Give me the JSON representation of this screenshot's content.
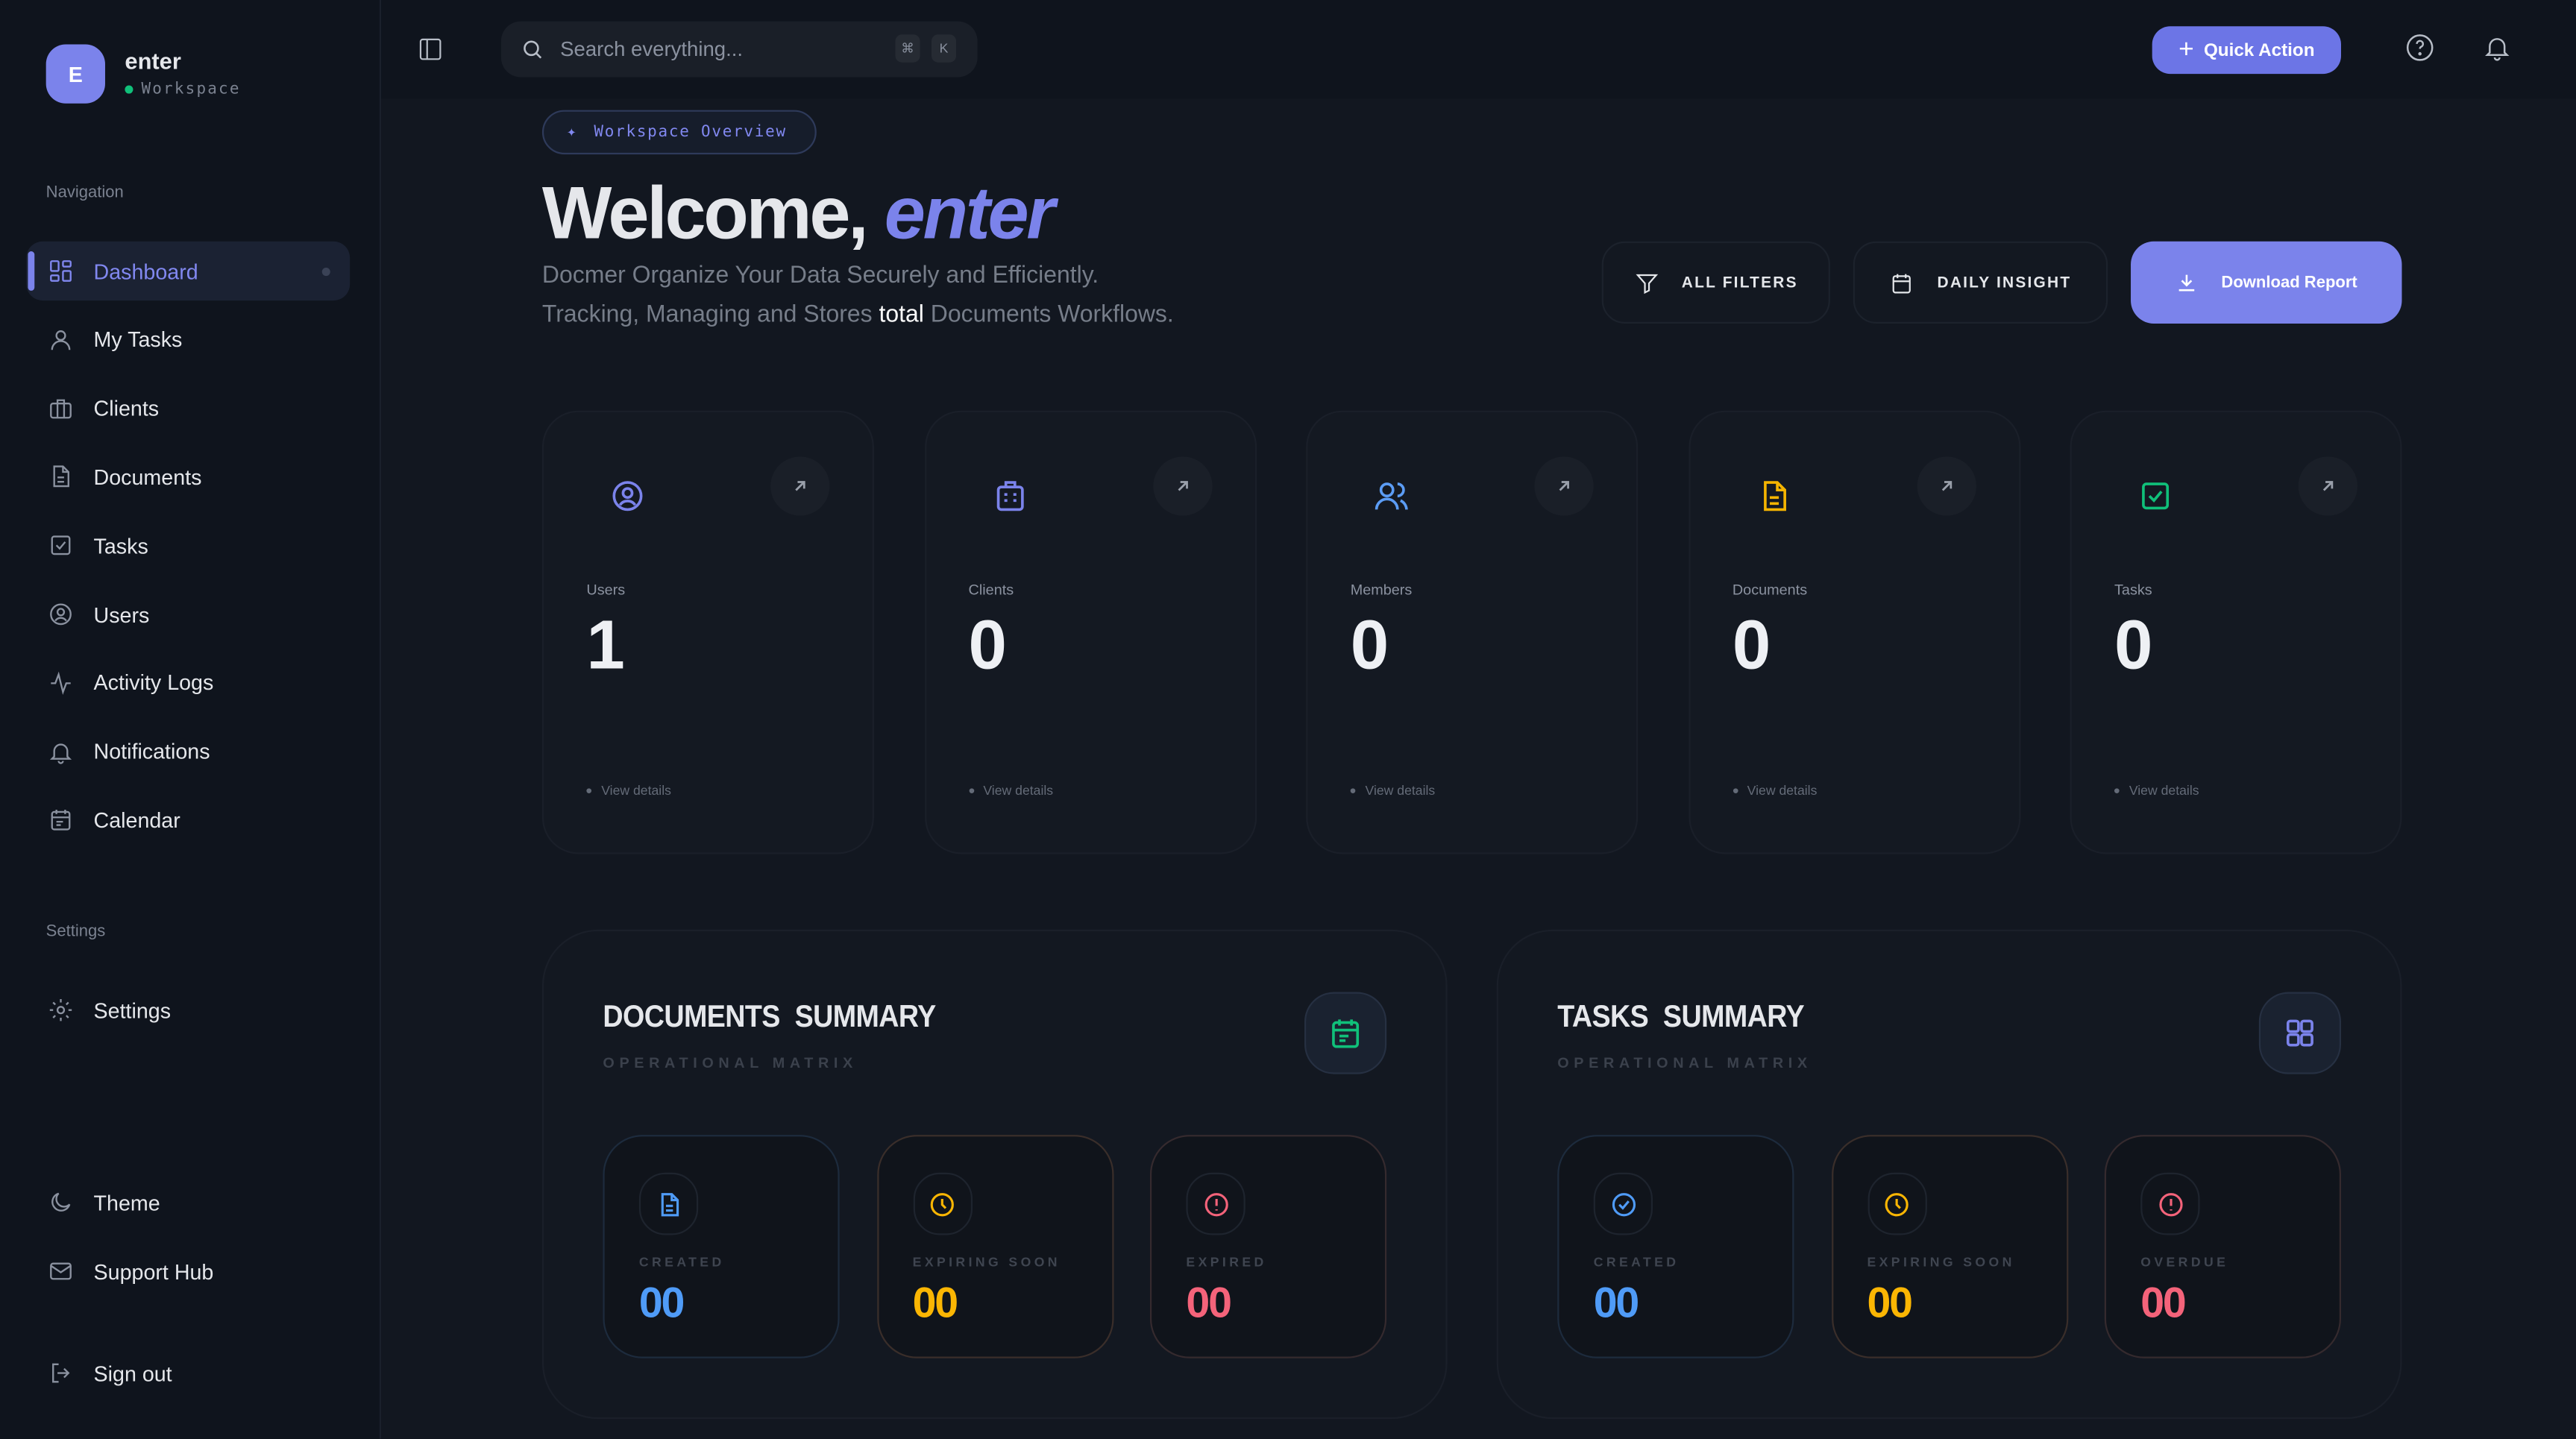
{
  "user": {
    "initial": "E",
    "name": "enter",
    "workspace": "Workspace"
  },
  "sidebar": {
    "nav_title": "Navigation",
    "items": [
      {
        "label": "Dashboard",
        "icon": "dashboard-icon",
        "active": true
      },
      {
        "label": "My Tasks",
        "icon": "user-icon"
      },
      {
        "label": "Clients",
        "icon": "briefcase-icon"
      },
      {
        "label": "Documents",
        "icon": "document-icon"
      },
      {
        "label": "Tasks",
        "icon": "checkbox-icon"
      },
      {
        "label": "Users",
        "icon": "user-circle-icon"
      },
      {
        "label": "Activity Logs",
        "icon": "activity-icon"
      },
      {
        "label": "Notifications",
        "icon": "bell-icon"
      },
      {
        "label": "Calendar",
        "icon": "calendar-icon"
      }
    ],
    "settings_title": "Settings",
    "settings": [
      {
        "label": "Settings",
        "icon": "gear-icon"
      }
    ],
    "bottom": [
      {
        "label": "Theme",
        "icon": "moon-icon"
      },
      {
        "label": "Support Hub",
        "icon": "mail-icon"
      },
      {
        "label": "Sign out",
        "icon": "sign-out-icon"
      }
    ]
  },
  "topbar": {
    "search_placeholder": "Search everything...",
    "kbd": [
      "⌘",
      "K"
    ],
    "quick_action": "Quick Action"
  },
  "hero": {
    "badge": "Workspace Overview",
    "greeting": "Welcome,",
    "name": "enter",
    "line1": "Docmer Organize Your Data Securely and Efficiently.",
    "line2_pre": "Tracking, Managing and Stores ",
    "line2_bold": "total",
    "line2_post": " Documents Workflows.",
    "all_filters": "ALL FILTERS",
    "daily_insight": "DAILY INSIGHT",
    "download": "Download Report"
  },
  "stats": [
    {
      "label": "Users",
      "value": "1",
      "link": "View details",
      "icon": "user-circle-icon",
      "color": "#7b83eb"
    },
    {
      "label": "Clients",
      "value": "0",
      "link": "View details",
      "icon": "building-icon",
      "color": "#7b83eb"
    },
    {
      "label": "Members",
      "value": "0",
      "link": "View details",
      "icon": "users-icon",
      "color": "#5b9cf5"
    },
    {
      "label": "Documents",
      "value": "0",
      "link": "View details",
      "icon": "document-icon",
      "color": "#f5b400"
    },
    {
      "label": "Tasks",
      "value": "0",
      "link": "View details",
      "icon": "checkbox-icon",
      "color": "#10c07a"
    }
  ],
  "summaries": [
    {
      "title": "DOCUMENTS SUMMARY",
      "subtitle": "OPERATIONAL MATRIX",
      "icon": "calendar-icon",
      "icon_color": "#10c07a",
      "items": [
        {
          "label": "CREATED",
          "value": "00",
          "color": "#4f9bf7",
          "icon": "document-icon"
        },
        {
          "label": "EXPIRING SOON",
          "value": "00",
          "color": "#fbb603",
          "icon": "clock-icon"
        },
        {
          "label": "EXPIRED",
          "value": "00",
          "color": "#f4637a",
          "icon": "alert-icon"
        }
      ]
    },
    {
      "title": "TASKS SUMMARY",
      "subtitle": "OPERATIONAL MATRIX",
      "icon": "grid-icon",
      "icon_color": "#7b83eb",
      "items": [
        {
          "label": "CREATED",
          "value": "00",
          "color": "#4f9bf7",
          "icon": "check-circle-icon"
        },
        {
          "label": "EXPIRING SOON",
          "value": "00",
          "color": "#fbb603",
          "icon": "clock-icon"
        },
        {
          "label": "OVERDUE",
          "value": "00",
          "color": "#f4637a",
          "icon": "alert-icon"
        }
      ]
    }
  ]
}
